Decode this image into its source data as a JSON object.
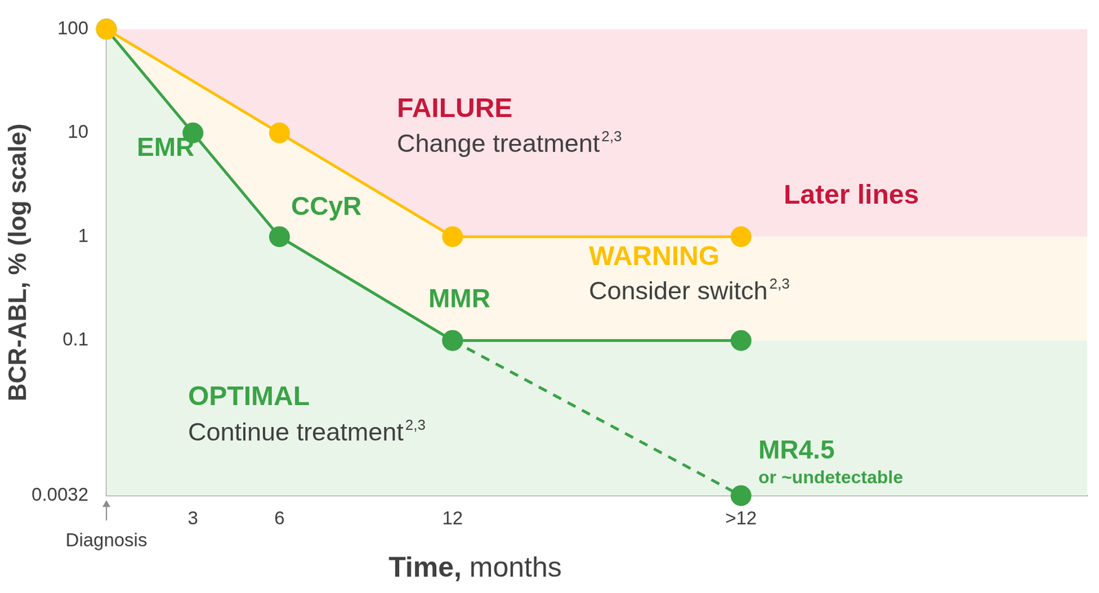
{
  "chart_data": {
    "type": "line",
    "x_label": "Time, months",
    "y_label": "BCR-ABL, % (log scale)",
    "log": "y",
    "grid": false,
    "xlim": [
      0,
      34
    ],
    "xticks": [
      {
        "value": 0,
        "label": "Diagnosis"
      },
      3,
      6,
      12,
      {
        "value": 22,
        "label": ">12"
      }
    ],
    "ylim": [
      0.0032,
      100
    ],
    "yticks": [
      0.0032,
      0.1,
      1,
      10,
      100
    ],
    "series": [
      {
        "color": "#ffc000",
        "marker": "circle",
        "line_style": "solid",
        "x": [
          0,
          6,
          12,
          22
        ],
        "values": [
          100,
          10,
          1,
          1
        ]
      },
      {
        "color": "#3aa346",
        "marker": "circle",
        "line_style": "solid",
        "x": [
          0,
          3,
          6,
          12,
          22
        ],
        "values": [
          100,
          10,
          1,
          0.1,
          0.1
        ]
      },
      {
        "color": "#3aa346",
        "marker": "circle",
        "line_style": "dashed",
        "x": [
          12,
          22
        ],
        "values": [
          0.1,
          0.0032
        ]
      }
    ],
    "annotations": [
      {
        "text": "EMR",
        "color": "#3aa346"
      },
      {
        "text": "CCyR",
        "color": "#3aa346"
      },
      {
        "text": "MMR",
        "color": "#3aa346"
      },
      {
        "text": "FAILURE",
        "color": "#c8173a"
      },
      {
        "text": "Change treatment",
        "superscript": "2,3",
        "color": "#404040"
      },
      {
        "text": "Later lines",
        "color": "#c8173a"
      },
      {
        "text": "WARNING",
        "color": "#ffc000"
      },
      {
        "text": "Consider switch",
        "superscript": "2,3",
        "color": "#404040"
      },
      {
        "text": "OPTIMAL",
        "color": "#3aa346"
      },
      {
        "text": "Continue treatment",
        "superscript": "2,3",
        "color": "#404040"
      },
      {
        "text": "MR4.5",
        "color": "#3aa346"
      },
      {
        "text": "or ~undetectable",
        "color": "#3aa346"
      }
    ]
  }
}
